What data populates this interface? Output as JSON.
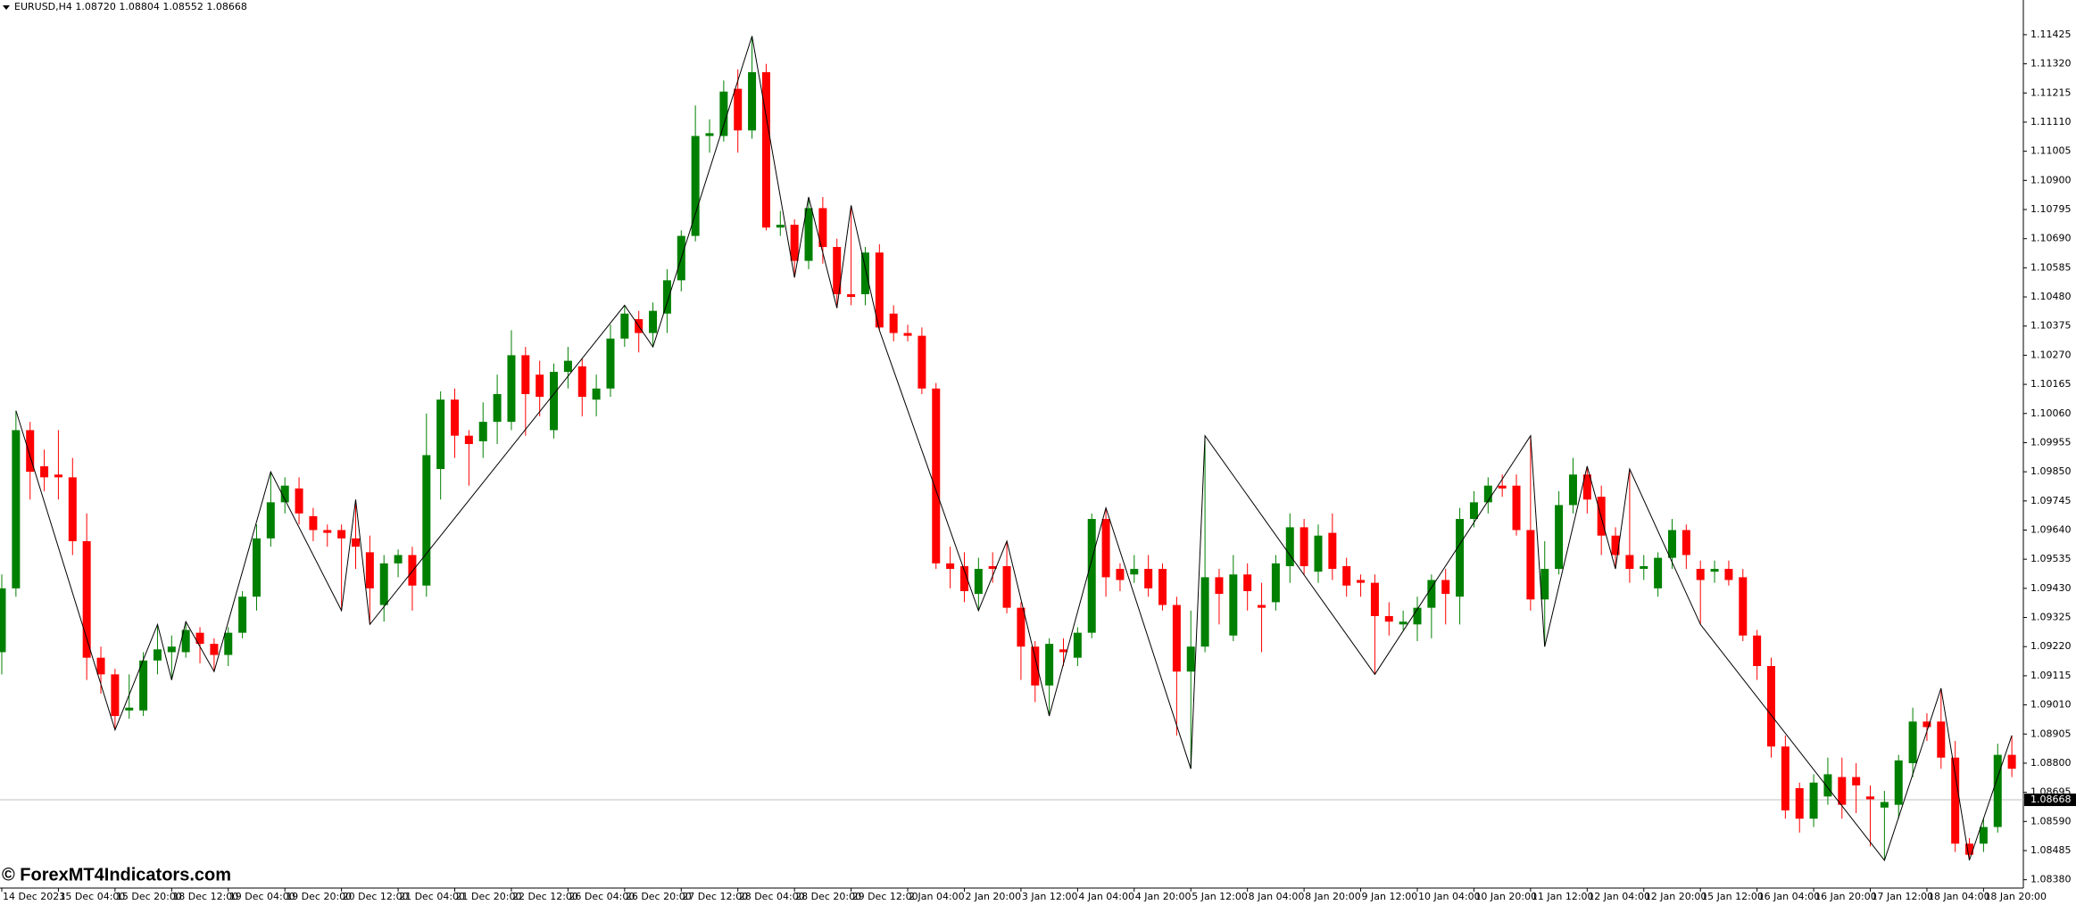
{
  "chart_data": {
    "type": "candlestick",
    "title": "EURUSD,H4  1.08720 1.08804 1.08552 1.08668",
    "watermark": "© ForexMT4Indicators.com",
    "up_color": "#008000",
    "down_color": "#ff0000",
    "categories": [
      "14 Dec 2023",
      null,
      null,
      null,
      "15 Dec 04:00",
      null,
      null,
      null,
      "15 Dec 20:00",
      null,
      null,
      null,
      "18 Dec 12:00",
      null,
      null,
      null,
      "19 Dec 04:00",
      null,
      null,
      null,
      "19 Dec 20:00",
      null,
      null,
      null,
      "20 Dec 12:00",
      null,
      null,
      null,
      "21 Dec 04:00",
      null,
      null,
      null,
      "21 Dec 20:00",
      null,
      null,
      null,
      "22 Dec 12:00",
      null,
      null,
      null,
      "26 Dec 04:00",
      null,
      null,
      null,
      "26 Dec 20:00",
      null,
      null,
      null,
      "27 Dec 12:00",
      null,
      null,
      null,
      "28 Dec 04:00",
      null,
      null,
      null,
      "28 Dec 20:00",
      null,
      null,
      null,
      "29 Dec 12:00",
      null,
      null,
      null,
      "2 Jan 04:00",
      null,
      null,
      null,
      "2 Jan 20:00",
      null,
      null,
      null,
      "3 Jan 12:00",
      null,
      null,
      null,
      "4 Jan 04:00",
      null,
      null,
      null,
      "4 Jan 20:00",
      null,
      null,
      null,
      "5 Jan 12:00",
      null,
      null,
      null,
      "8 Jan 04:00",
      null,
      null,
      null,
      "8 Jan 20:00",
      null,
      null,
      null,
      "9 Jan 12:00",
      null,
      null,
      null,
      "10 Jan 04:00",
      null,
      null,
      null,
      "10 Jan 20:00",
      null,
      null,
      null,
      "11 Jan 12:00",
      null,
      null,
      null,
      "12 Jan 04:00",
      null,
      null,
      null,
      "12 Jan 20:00",
      null,
      null,
      null,
      "15 Jan 12:00",
      null,
      null,
      null,
      "16 Jan 04:00",
      null,
      null,
      null,
      "16 Jan 20:00",
      null,
      null,
      null,
      "17 Jan 12:00",
      null,
      null,
      null,
      "18 Jan 04:00",
      null,
      null,
      null,
      "18 Jan 20:00",
      null,
      null
    ],
    "open": [
      1.092,
      1.0943,
      1.1,
      1.0987,
      1.0984,
      1.0983,
      1.096,
      1.0918,
      1.0912,
      1.0899,
      1.0899,
      1.0917,
      1.092,
      1.092,
      1.0927,
      1.0923,
      1.0919,
      1.0927,
      1.094,
      1.0961,
      1.0974,
      1.0979,
      1.0969,
      1.0964,
      1.0964,
      1.0961,
      1.0956,
      1.0937,
      1.0952,
      1.0955,
      1.0944,
      1.0986,
      1.1011,
      1.0998,
      1.0996,
      1.1003,
      1.1003,
      1.1027,
      1.102,
      1.1,
      1.1021,
      1.1023,
      1.1011,
      1.1015,
      1.1033,
      1.104,
      1.1035,
      1.1042,
      1.1054,
      1.107,
      1.1106,
      1.1106,
      1.1123,
      1.1108,
      1.1129,
      1.1073,
      1.1074,
      1.1061,
      1.108,
      1.1066,
      1.1049,
      1.1049,
      1.1064,
      1.1042,
      1.1035,
      1.1034,
      1.1015,
      1.0952,
      1.0951,
      1.0941,
      1.0951,
      1.0951,
      1.0936,
      1.0922,
      1.0908,
      1.0921,
      1.0918,
      1.0927,
      1.0968,
      1.095,
      1.0948,
      1.095,
      1.095,
      1.0937,
      1.0913,
      1.0922,
      1.0947,
      1.0926,
      1.0948,
      1.0937,
      1.0938,
      1.0951,
      1.0965,
      1.0949,
      1.0963,
      1.0951,
      1.0946,
      1.0945,
      1.0933,
      1.093,
      1.093,
      1.0936,
      1.0946,
      1.094,
      1.0968,
      1.0974,
      1.098,
      1.098,
      1.0964,
      1.0939,
      1.095,
      1.0973,
      1.0984,
      1.0976,
      1.0962,
      1.0955,
      1.095,
      1.0943,
      1.0954,
      1.0964,
      1.095,
      1.0949,
      1.095,
      1.0947,
      1.0926,
      1.0915,
      1.0886,
      1.0871,
      1.086,
      1.0868,
      1.0875,
      1.0875,
      1.0868,
      1.0864,
      1.0865,
      1.088,
      1.0895,
      1.0895,
      1.0882,
      1.0851,
      1.0851,
      1.0857,
      1.0883
    ],
    "high": [
      1.0948,
      1.1007,
      1.1003,
      1.0993,
      1.1,
      1.099,
      1.097,
      1.0922,
      1.0914,
      1.0912,
      1.092,
      1.093,
      1.0926,
      1.0931,
      1.0929,
      1.0925,
      1.0929,
      1.0942,
      1.0966,
      1.0985,
      1.0983,
      1.0983,
      1.0972,
      1.0966,
      1.0966,
      1.0975,
      1.0962,
      1.0955,
      1.0957,
      1.0958,
      1.1006,
      1.1014,
      1.1015,
      1.1,
      1.101,
      1.102,
      1.1036,
      1.103,
      1.1025,
      1.1024,
      1.103,
      1.1026,
      1.102,
      1.1038,
      1.1045,
      1.1043,
      1.1046,
      1.1058,
      1.1072,
      1.1117,
      1.1112,
      1.1126,
      1.113,
      1.1142,
      1.1132,
      1.1079,
      1.1076,
      1.1084,
      1.1084,
      1.1069,
      1.1081,
      1.1066,
      1.1067,
      1.1045,
      1.1038,
      1.1037,
      1.1017,
      1.0958,
      1.0956,
      1.0954,
      1.0956,
      1.096,
      1.0938,
      1.0924,
      1.0925,
      1.0925,
      1.0929,
      1.097,
      1.0972,
      1.0952,
      1.0955,
      1.0955,
      1.0952,
      1.094,
      1.0935,
      1.0998,
      1.095,
      1.0955,
      1.0952,
      1.0945,
      1.0955,
      1.097,
      1.0968,
      1.0966,
      1.097,
      1.0954,
      1.0948,
      1.0948,
      1.0938,
      1.0935,
      1.094,
      1.0948,
      1.095,
      1.0972,
      1.0978,
      1.0983,
      1.0984,
      1.0984,
      1.0998,
      1.096,
      1.0978,
      1.099,
      1.0987,
      1.098,
      1.0965,
      1.0986,
      1.0955,
      1.0956,
      1.0968,
      1.0966,
      1.0953,
      1.0953,
      1.0953,
      1.095,
      1.0928,
      1.0918,
      1.089,
      1.0873,
      1.0876,
      1.0882,
      1.0882,
      1.088,
      1.0872,
      1.087,
      1.0883,
      1.09,
      1.0898,
      1.0907,
      1.0888,
      1.0853,
      1.086,
      1.0887,
      1.089
    ],
    "low": [
      1.0912,
      1.094,
      1.0975,
      1.0978,
      1.0975,
      1.0955,
      1.091,
      1.0905,
      1.0892,
      1.0896,
      1.0897,
      1.0912,
      1.091,
      1.0918,
      1.0916,
      1.0913,
      1.0915,
      1.0925,
      1.0935,
      1.0958,
      1.097,
      1.0966,
      1.096,
      1.0958,
      1.0935,
      1.095,
      1.093,
      1.0931,
      1.0947,
      1.0935,
      1.094,
      1.0975,
      1.099,
      1.098,
      1.099,
      1.0995,
      1.1,
      1.0998,
      1.1005,
      1.0997,
      1.1015,
      1.1005,
      1.1005,
      1.1012,
      1.103,
      1.1028,
      1.103,
      1.1035,
      1.105,
      1.1068,
      1.11,
      1.1104,
      1.11,
      1.1105,
      1.1072,
      1.107,
      1.1055,
      1.1058,
      1.106,
      1.1044,
      1.1045,
      1.1045,
      1.1036,
      1.1032,
      1.1032,
      1.1013,
      1.095,
      1.0943,
      1.0938,
      1.0935,
      1.0945,
      1.0934,
      1.091,
      1.0902,
      1.0897,
      1.0915,
      1.0915,
      1.0925,
      1.094,
      1.0942,
      1.0945,
      1.094,
      1.0935,
      1.089,
      1.0878,
      1.092,
      1.093,
      1.0924,
      1.0935,
      1.092,
      1.0935,
      1.0945,
      1.0948,
      1.0945,
      1.0946,
      1.094,
      1.094,
      1.0912,
      1.0926,
      1.0928,
      1.0924,
      1.0925,
      1.093,
      1.093,
      1.0965,
      1.097,
      1.0976,
      1.0962,
      1.0935,
      1.0922,
      1.0948,
      1.097,
      1.097,
      1.0955,
      1.095,
      1.0945,
      1.0946,
      1.094,
      1.095,
      1.095,
      1.093,
      1.0945,
      1.0944,
      1.0924,
      1.091,
      1.0882,
      1.086,
      1.0855,
      1.0857,
      1.0865,
      1.086,
      1.0862,
      1.085,
      1.0845,
      1.086,
      1.0875,
      1.0888,
      1.0878,
      1.0848,
      1.0845,
      1.0848,
      1.0855,
      1.0875
    ],
    "close": [
      1.0943,
      1.1,
      1.0985,
      1.0983,
      1.0983,
      1.096,
      1.0918,
      1.0912,
      1.0897,
      1.09,
      1.0917,
      1.0921,
      1.0922,
      1.0928,
      1.0923,
      1.0919,
      1.0927,
      1.094,
      1.0961,
      1.0974,
      1.098,
      1.097,
      1.0964,
      1.0963,
      1.0961,
      1.0958,
      1.0943,
      1.0952,
      1.0955,
      1.0944,
      1.0991,
      1.1011,
      1.0998,
      1.0995,
      1.1003,
      1.1013,
      1.1027,
      1.1013,
      1.1012,
      1.1021,
      1.1025,
      1.1012,
      1.1015,
      1.1033,
      1.1042,
      1.1035,
      1.1043,
      1.1054,
      1.107,
      1.1106,
      1.1107,
      1.1122,
      1.1108,
      1.1129,
      1.1073,
      1.1074,
      1.1061,
      1.108,
      1.1066,
      1.1049,
      1.1048,
      1.1064,
      1.1037,
      1.1035,
      1.1034,
      1.1015,
      1.0952,
      1.095,
      1.0942,
      1.095,
      1.095,
      1.0936,
      1.0922,
      1.0908,
      1.0923,
      1.092,
      1.0927,
      1.0968,
      1.0947,
      1.0946,
      1.095,
      1.0943,
      1.0937,
      1.0913,
      1.0922,
      1.0947,
      1.0941,
      1.0948,
      1.0942,
      1.0936,
      1.0952,
      1.0965,
      1.0951,
      1.0962,
      1.095,
      1.0944,
      1.0945,
      1.0933,
      1.0931,
      1.0931,
      1.0936,
      1.0946,
      1.0941,
      1.0968,
      1.0974,
      1.098,
      1.0979,
      1.0964,
      1.0939,
      1.095,
      1.0973,
      1.0984,
      1.0975,
      1.0962,
      1.0955,
      1.095,
      1.0951,
      1.0954,
      1.0964,
      1.0955,
      1.0946,
      1.095,
      1.0946,
      1.0926,
      1.0915,
      1.0886,
      1.0863,
      1.086,
      1.0873,
      1.0876,
      1.0865,
      1.0872,
      1.0867,
      1.0866,
      1.0881,
      1.0895,
      1.0893,
      1.0882,
      1.0851,
      1.0847,
      1.0857,
      1.0883,
      1.0878
    ],
    "zigzag": {
      "color": "#000000",
      "x": [
        1,
        8,
        11,
        12,
        13,
        15,
        19,
        24,
        25,
        26,
        44,
        46,
        53,
        56,
        57,
        59,
        60,
        62,
        69,
        71,
        74,
        78,
        84,
        85,
        97,
        108,
        109,
        112,
        114,
        115,
        120,
        133,
        137,
        139,
        142
      ],
      "values": [
        1.1007,
        1.0892,
        1.093,
        1.091,
        1.0931,
        1.0913,
        1.0985,
        1.0935,
        1.0975,
        1.093,
        1.1045,
        1.103,
        1.1142,
        1.1055,
        1.1084,
        1.1044,
        1.1081,
        1.1036,
        1.0935,
        1.096,
        1.0897,
        1.0972,
        1.0878,
        1.0998,
        1.0912,
        1.0998,
        1.0922,
        1.0987,
        1.095,
        1.0986,
        1.093,
        1.0845,
        1.0907,
        1.0845,
        1.089
      ]
    },
    "current_price": {
      "value": 1.08668,
      "label": "1.08668"
    },
    "ylim": [
      1.0835,
      1.1155
    ],
    "yticks": [
      1.11425,
      {
        "value": 1.1132,
        "label": "1.11320"
      },
      1.11215,
      {
        "value": 1.1111,
        "label": "1.11110"
      },
      1.11005,
      {
        "value": 1.109,
        "label": "1.10900"
      },
      1.10795,
      {
        "value": 1.1069,
        "label": "1.10690"
      },
      1.10585,
      {
        "value": 1.1048,
        "label": "1.10480"
      },
      1.10375,
      {
        "value": 1.1027,
        "label": "1.10270"
      },
      1.10165,
      {
        "value": 1.1006,
        "label": "1.10060"
      },
      1.09955,
      {
        "value": 1.0985,
        "label": "1.09850"
      },
      1.09745,
      {
        "value": 1.0964,
        "label": "1.09640"
      },
      1.09535,
      {
        "value": 1.0943,
        "label": "1.09430"
      },
      1.09325,
      {
        "value": 1.0922,
        "label": "1.09220"
      },
      1.09115,
      {
        "value": 1.0901,
        "label": "1.09010"
      },
      1.08905,
      {
        "value": 1.088,
        "label": "1.08800"
      },
      1.08695,
      {
        "value": 1.0859,
        "label": "1.08590"
      },
      1.08485,
      {
        "value": 1.0838,
        "label": "1.08380"
      }
    ],
    "grid": false
  }
}
